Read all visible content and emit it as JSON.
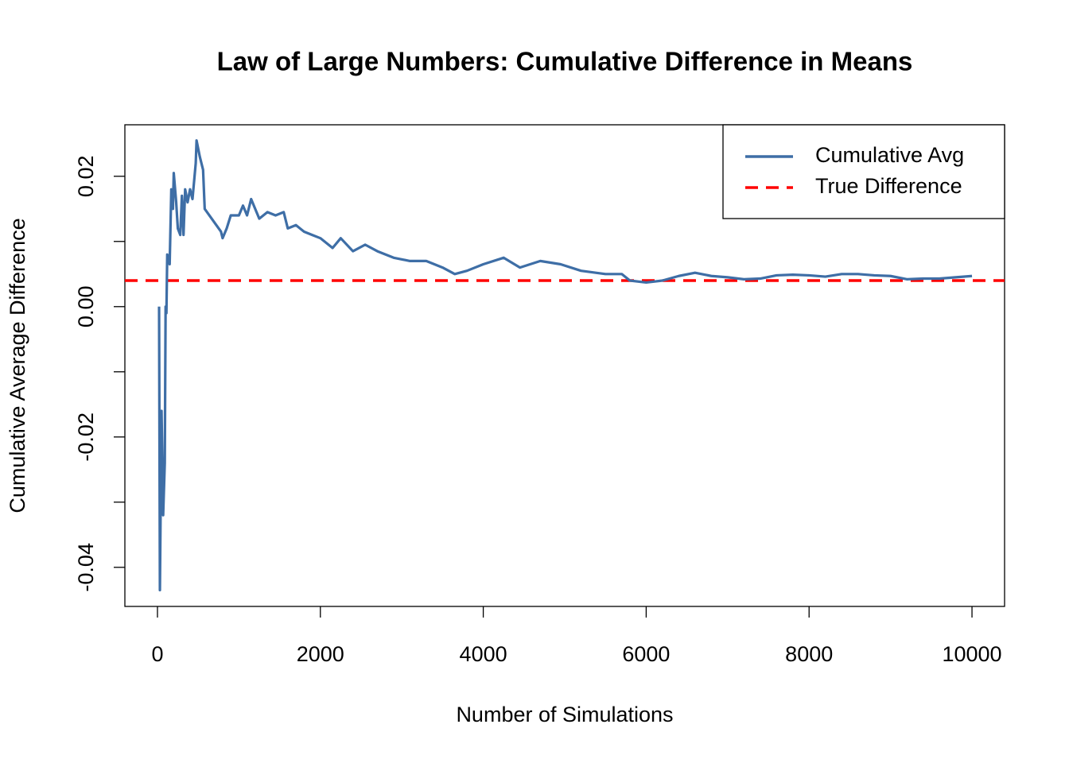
{
  "chart_data": {
    "type": "line",
    "title": "Law of Large Numbers: Cumulative Difference in Means",
    "x_label": "Number of Simulations",
    "y_label": "Cumulative Average Difference",
    "xlim": [
      -400,
      10400
    ],
    "ylim": [
      -0.046,
      0.0279
    ],
    "xticks": [
      0,
      2000,
      4000,
      6000,
      8000,
      10000
    ],
    "yticks": [
      -0.04,
      -0.02,
      {
        "value": 0,
        "label": "0.00"
      },
      0.02
    ],
    "yminor_ticks": [
      -0.03,
      -0.01,
      0.01
    ],
    "legend": "topright",
    "series": [
      {
        "name": "Cumulative Avg",
        "color": "#3e6ea6",
        "x": [
          20,
          30,
          50,
          70,
          90,
          100,
          110,
          120,
          150,
          170,
          190,
          200,
          230,
          250,
          280,
          300,
          320,
          340,
          370,
          400,
          430,
          470,
          480,
          520,
          560,
          580,
          780,
          800,
          850,
          900,
          1000,
          1050,
          1100,
          1150,
          1250,
          1350,
          1450,
          1550,
          1600,
          1700,
          1800,
          1900,
          2000,
          2150,
          2250,
          2400,
          2550,
          2700,
          2900,
          3100,
          3300,
          3500,
          3650,
          3800,
          4000,
          4250,
          4450,
          4700,
          4950,
          5200,
          5500,
          5700,
          5800,
          6000,
          6200,
          6400,
          6600,
          6800,
          7000,
          7200,
          7400,
          7600,
          7800,
          8000,
          8200,
          8400,
          8600,
          8800,
          9000,
          9200,
          9400,
          9600,
          9800,
          10000
        ],
        "values": [
          0,
          -0.0435,
          -0.016,
          -0.032,
          -0.024,
          0,
          -0.001,
          0.008,
          0.0065,
          0.018,
          0.015,
          0.0205,
          0.016,
          0.012,
          0.011,
          0.017,
          0.011,
          0.018,
          0.016,
          0.018,
          0.0165,
          0.022,
          0.0255,
          0.023,
          0.021,
          0.015,
          0.0115,
          0.0105,
          0.012,
          0.014,
          0.014,
          0.0155,
          0.014,
          0.0165,
          0.0135,
          0.0145,
          0.014,
          0.0145,
          0.012,
          0.0125,
          0.0115,
          0.011,
          0.0105,
          0.009,
          0.0105,
          0.0085,
          0.0095,
          0.0085,
          0.0075,
          0.007,
          0.007,
          0.006,
          0.005,
          0.0055,
          0.0065,
          0.0075,
          0.006,
          0.007,
          0.0065,
          0.0055,
          0.005,
          0.005,
          0.004,
          0.0037,
          0.004,
          0.0047,
          0.0052,
          0.0047,
          0.0045,
          0.0042,
          0.0043,
          0.0048,
          0.0049,
          0.0048,
          0.0046,
          0.005,
          0.005,
          0.0048,
          0.0047,
          0.0042,
          0.0043,
          0.0043,
          0.0045,
          0.0047
        ]
      }
    ],
    "reference_lines": [
      {
        "name": "True Difference",
        "value": 0.004,
        "color": "#ff0000",
        "dashed": true
      }
    ]
  }
}
